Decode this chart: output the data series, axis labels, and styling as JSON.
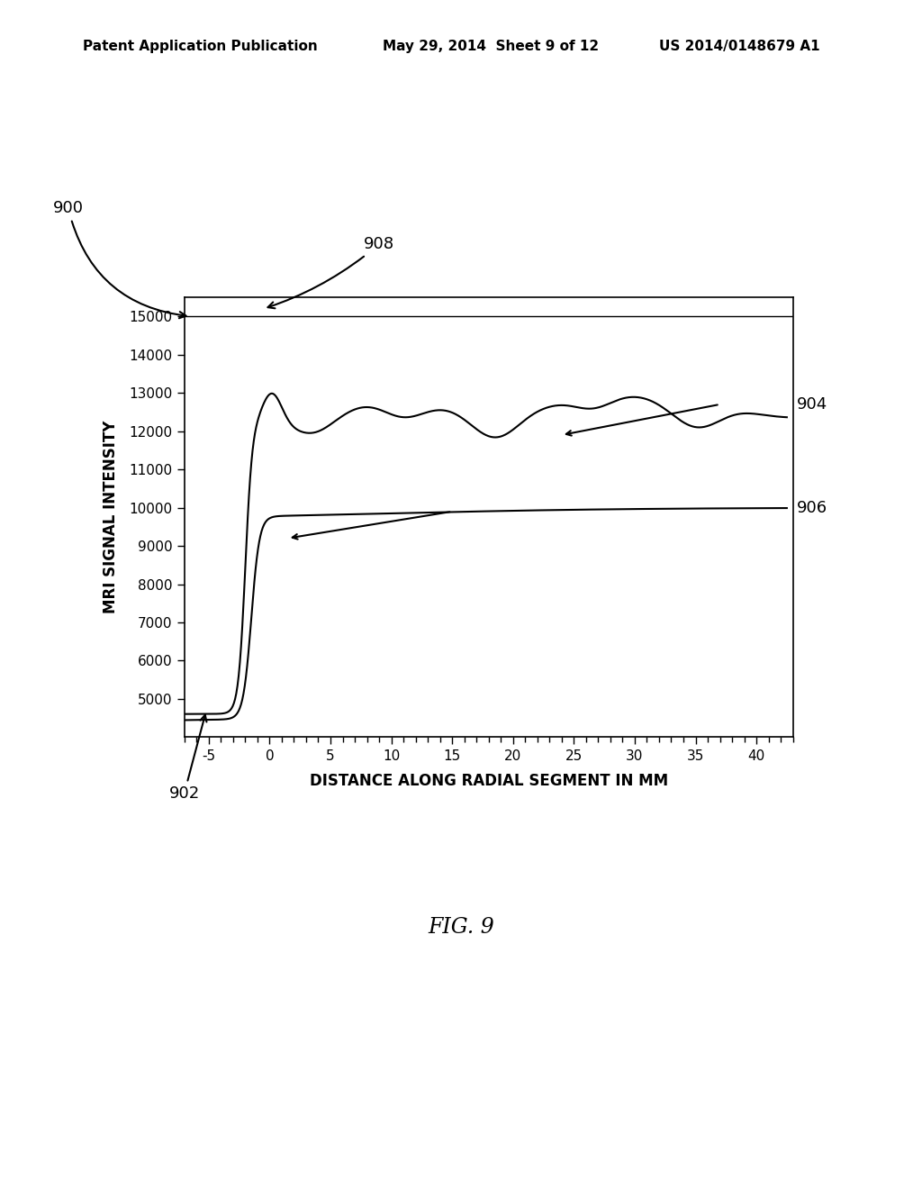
{
  "title_header": "Patent Application Publication",
  "title_date": "May 29, 2014  Sheet 9 of 12",
  "title_patent": "US 2014/0148679 A1",
  "xlabel": "DISTANCE ALONG RADIAL SEGMENT IN MM",
  "ylabel": "MRI SIGNAL INTENSITY",
  "xlim": [
    -7,
    43
  ],
  "ylim": [
    4000,
    15500
  ],
  "yticks": [
    5000,
    6000,
    7000,
    8000,
    9000,
    10000,
    11000,
    12000,
    13000,
    14000,
    15000
  ],
  "xticks": [
    -5,
    0,
    5,
    10,
    15,
    20,
    25,
    30,
    35,
    40
  ],
  "fig_label": "FIG. 9",
  "label_900": "900",
  "label_902": "902",
  "label_904": "904",
  "label_906": "906",
  "label_908": "908",
  "background_color": "#ffffff",
  "line_color": "#000000"
}
